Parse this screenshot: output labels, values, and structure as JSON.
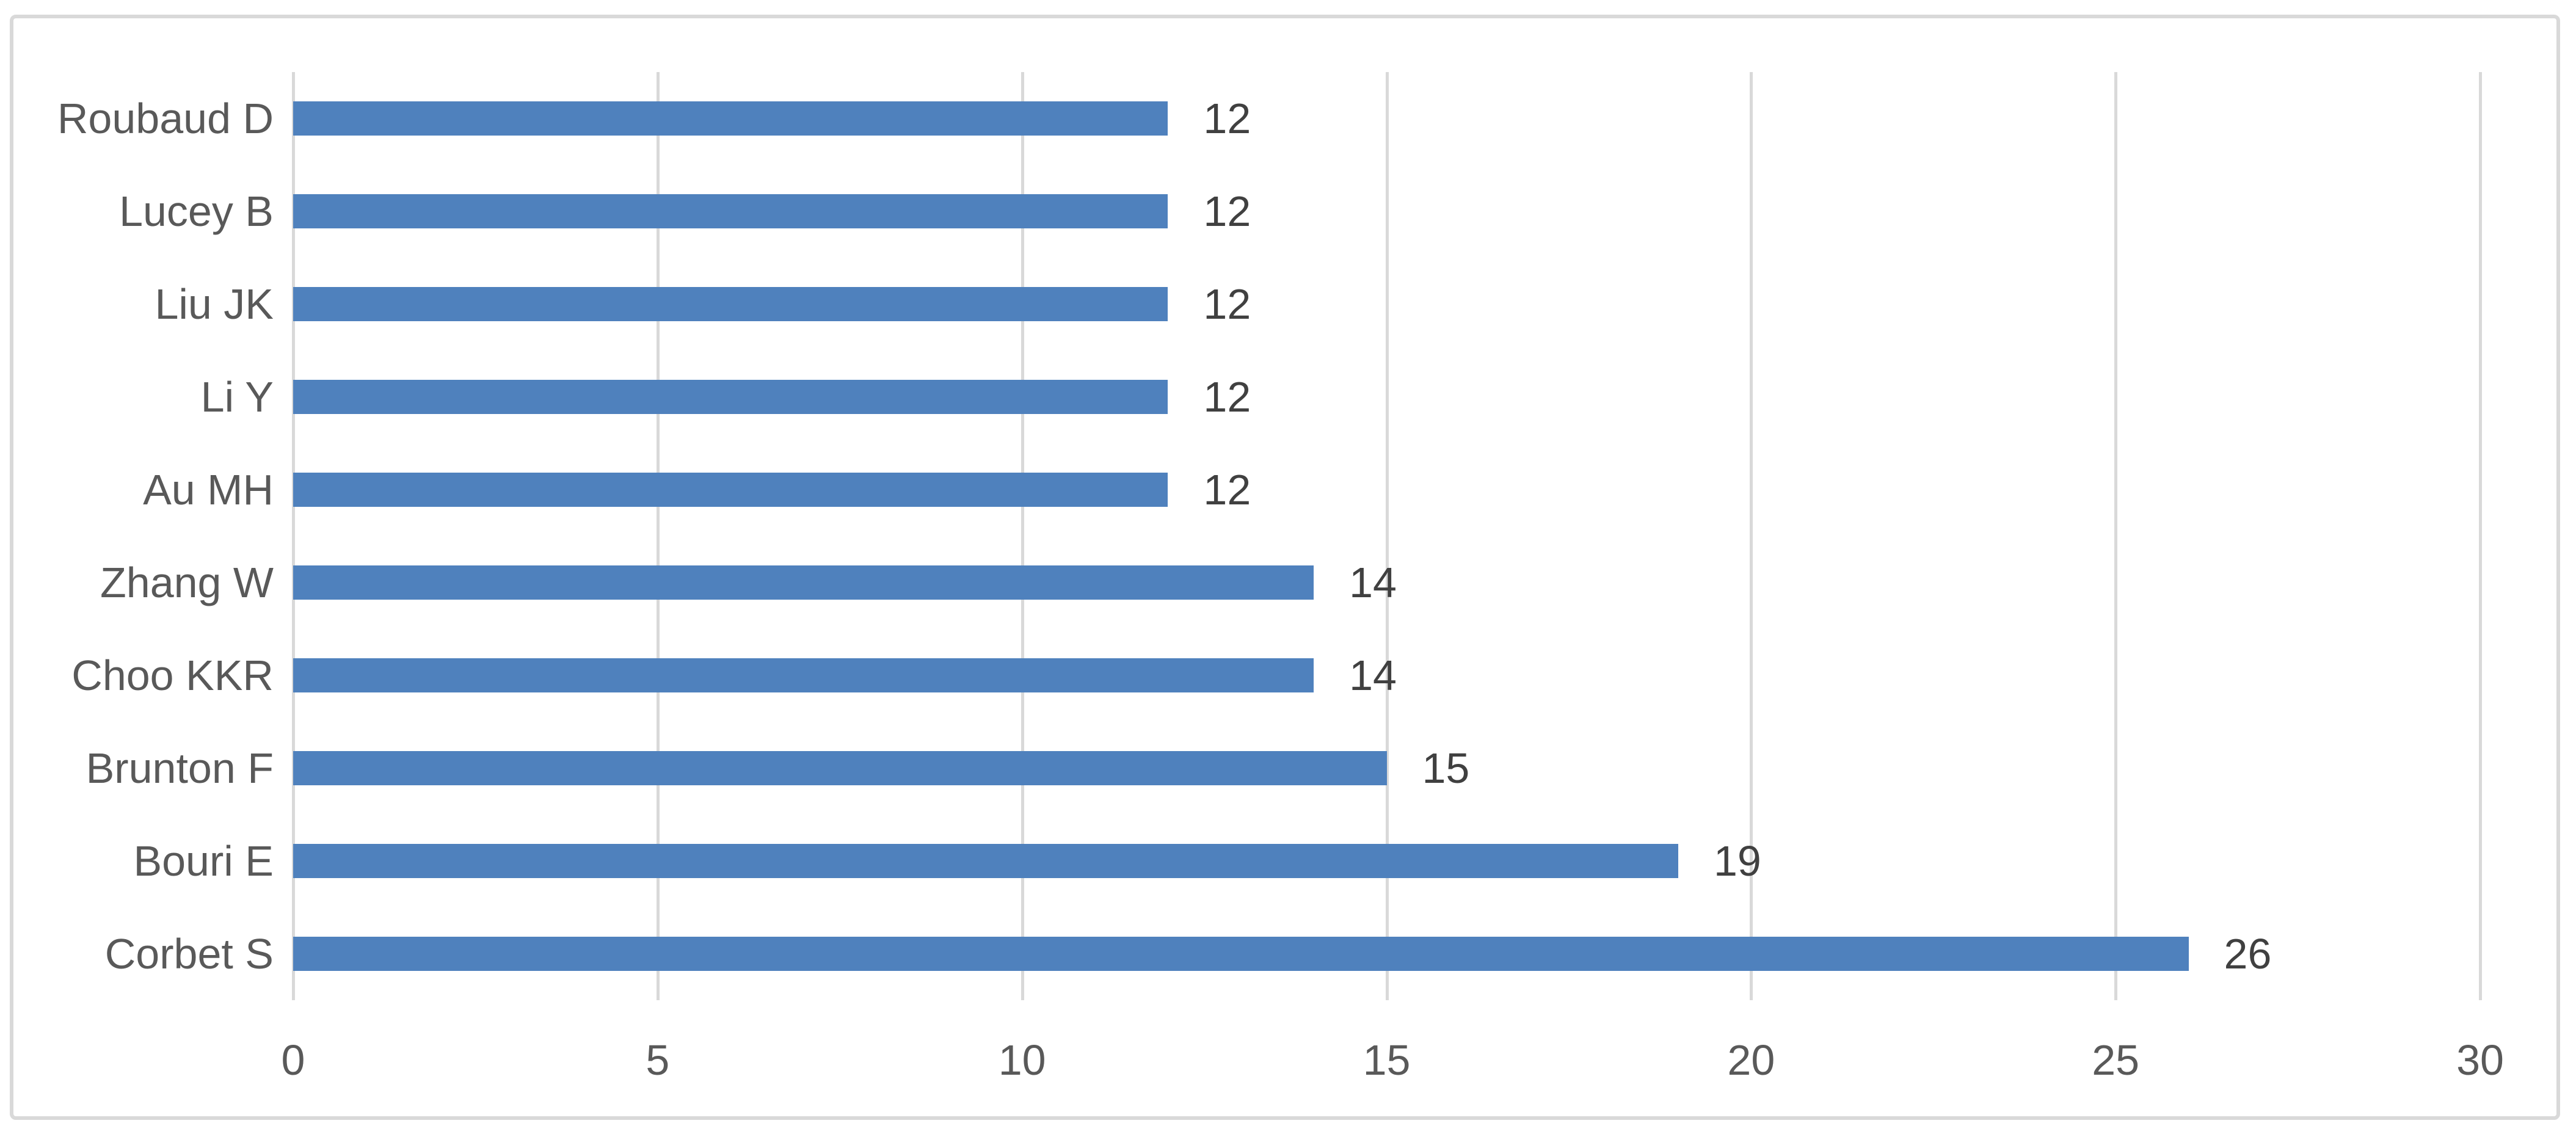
{
  "chart_data": {
    "type": "bar",
    "orientation": "horizontal",
    "title": "",
    "xlabel": "",
    "ylabel": "",
    "categories_top_to_bottom": [
      "Roubaud D",
      "Lucey B",
      "Liu JK",
      "Li Y",
      "Au MH",
      "Zhang W",
      "Choo KKR",
      "Brunton F",
      "Bouri E",
      "Corbet S"
    ],
    "values": [
      12,
      12,
      12,
      12,
      12,
      14,
      14,
      15,
      19,
      26
    ],
    "data_labels": [
      "12",
      "12",
      "12",
      "12",
      "12",
      "14",
      "14",
      "15",
      "19",
      "26"
    ],
    "x_ticks": [
      0,
      5,
      10,
      15,
      20,
      25,
      30
    ],
    "xlim": [
      0,
      30
    ],
    "grid": "vertical-only",
    "legend": "none",
    "colors": {
      "bar": "#4F81BD",
      "gridline": "#D9D9D9",
      "frame_border": "#D9D9D9",
      "category_label": "#595959",
      "tick_label": "#595959",
      "data_label": "#404040",
      "background": "#FFFFFF"
    }
  }
}
